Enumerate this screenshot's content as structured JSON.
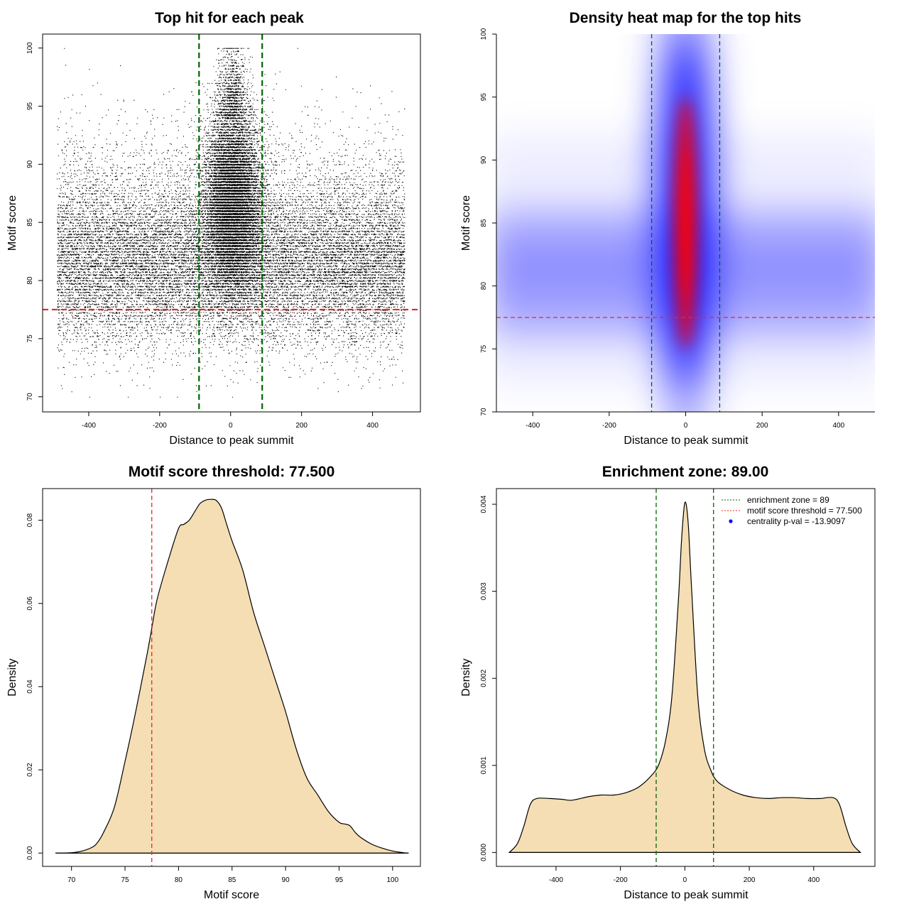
{
  "chart_data": [
    {
      "type": "scatter",
      "title": "Top hit for each peak",
      "xlabel": "Distance to peak summit",
      "ylabel": "Motif score",
      "xlim": [
        -530,
        535
      ],
      "ylim": [
        68.7,
        101.2
      ],
      "xticks": [
        -400,
        -200,
        0,
        200,
        400
      ],
      "yticks": [
        70,
        75,
        80,
        85,
        90,
        95,
        100
      ],
      "lines": [
        {
          "orientation": "vertical",
          "value": -89,
          "color": "#006400",
          "style": "dashed",
          "name": "enrichment zone lower"
        },
        {
          "orientation": "vertical",
          "value": 89,
          "color": "#006400",
          "style": "dashed",
          "name": "enrichment zone upper"
        },
        {
          "orientation": "horizontal",
          "value": 77.5,
          "color": "#e0282d",
          "style": "dashed",
          "name": "motif score threshold"
        }
      ],
      "points_description": "dense cloud of ~40000 top hits; background uniform in x over [-490, 490] with scores centred near 81; central enrichment around x=0 with scores centred near 86 extending to 100",
      "point_color": "#000000"
    },
    {
      "type": "heatmap",
      "title": "Density heat map for the top hits",
      "xlabel": "Distance to peak summit",
      "ylabel": "Motif score",
      "xlim": [
        -495,
        495
      ],
      "ylim": [
        70,
        100
      ],
      "xticks": [
        -400,
        -200,
        0,
        200,
        400
      ],
      "yticks": [
        70,
        75,
        80,
        85,
        90,
        95,
        100
      ],
      "colormap": [
        "#ffffff",
        "#0000ff",
        "#ff0000"
      ],
      "peak_density_at": {
        "x": 0,
        "y": 85
      },
      "lines": [
        {
          "orientation": "vertical",
          "value": -89,
          "color": "#006400",
          "style": "dashed",
          "name": "enrichment zone lower"
        },
        {
          "orientation": "vertical",
          "value": 89,
          "color": "#006400",
          "style": "dashed",
          "name": "enrichment zone upper"
        },
        {
          "orientation": "horizontal",
          "value": 77.5,
          "color": "#e0282d",
          "style": "dashed",
          "name": "motif score threshold"
        }
      ]
    },
    {
      "type": "area",
      "title": "Motif score threshold: 77.500",
      "xlabel": "Motif score",
      "ylabel": "Density",
      "xlim": [
        67.3,
        102.6
      ],
      "ylim": [
        -0.0032,
        0.0876
      ],
      "xticks": [
        70,
        75,
        80,
        85,
        90,
        95,
        100
      ],
      "yticks": [
        0.0,
        0.02,
        0.04,
        0.06,
        0.08
      ],
      "ytick_labels": [
        "0.00",
        "0.02",
        "0.04",
        "0.06",
        "0.08"
      ],
      "fill_color": "#f5deb3",
      "x": [
        68.5,
        70,
        71,
        72,
        72.5,
        73,
        74,
        75,
        76,
        77,
        77.5,
        78,
        79,
        80,
        80.5,
        81,
        81.5,
        82,
        82.5,
        83,
        83.5,
        84,
        84.5,
        85,
        86,
        87,
        88,
        89,
        90,
        91,
        92,
        93,
        94,
        95,
        95.5,
        96,
        96.5,
        97,
        98,
        99,
        100,
        101,
        101.5
      ],
      "values": [
        0,
        0.0001,
        0.0005,
        0.0015,
        0.0028,
        0.005,
        0.011,
        0.022,
        0.034,
        0.047,
        0.054,
        0.061,
        0.07,
        0.078,
        0.079,
        0.08,
        0.082,
        0.084,
        0.0848,
        0.085,
        0.0848,
        0.083,
        0.079,
        0.075,
        0.068,
        0.058,
        0.05,
        0.042,
        0.034,
        0.025,
        0.018,
        0.014,
        0.01,
        0.0074,
        0.007,
        0.0066,
        0.005,
        0.0038,
        0.0022,
        0.0012,
        0.0005,
        0.0001,
        0
      ],
      "lines": [
        {
          "orientation": "vertical",
          "value": 77.5,
          "color": "#e0282d",
          "style": "dashed",
          "name": "motif score threshold"
        }
      ]
    },
    {
      "type": "area",
      "title": "Enrichment zone: 89.00",
      "xlabel": "Distance to peak summit",
      "ylabel": "Density",
      "xlim": [
        -585,
        590
      ],
      "ylim": [
        -0.00016,
        0.00418
      ],
      "xticks": [
        -400,
        -200,
        0,
        200,
        400
      ],
      "yticks": [
        0,
        0.001,
        0.002,
        0.003,
        0.004
      ],
      "ytick_labels": [
        "0.000",
        "0.001",
        "0.002",
        "0.003",
        "0.004"
      ],
      "fill_color": "#f5deb3",
      "x": [
        -545,
        -520,
        -500,
        -480,
        -460,
        -420,
        -380,
        -350,
        -300,
        -260,
        -220,
        -180,
        -140,
        -100,
        -80,
        -60,
        -40,
        -20,
        -10,
        0,
        10,
        20,
        40,
        60,
        80,
        100,
        140,
        180,
        220,
        260,
        300,
        340,
        380,
        420,
        460,
        480,
        500,
        520,
        545
      ],
      "values": [
        0,
        0.0001,
        0.0003,
        0.00055,
        0.00062,
        0.00062,
        0.00061,
        0.0006,
        0.00064,
        0.00066,
        0.00066,
        0.00069,
        0.00076,
        0.0009,
        0.00102,
        0.00128,
        0.0018,
        0.0029,
        0.0036,
        0.00402,
        0.0038,
        0.0031,
        0.0018,
        0.0012,
        0.00095,
        0.00082,
        0.00072,
        0.00066,
        0.00063,
        0.00062,
        0.00063,
        0.00063,
        0.00062,
        0.00062,
        0.00063,
        0.00055,
        0.0003,
        0.0001,
        0
      ],
      "lines": [
        {
          "orientation": "vertical",
          "value": -89,
          "color": "#006400",
          "style": "dashed",
          "name": "enrichment zone lower"
        },
        {
          "orientation": "vertical",
          "value": 89,
          "color": "#006400",
          "style": "dashed",
          "name": "enrichment zone upper"
        }
      ],
      "legend": {
        "placement": "top-right",
        "entries": [
          {
            "label": "enrichment zone = 89",
            "color": "#006400",
            "marker": "dotted-line"
          },
          {
            "label": "motif score threshold = 77.500",
            "color": "#e0282d",
            "marker": "dotted-line"
          },
          {
            "label": "centrality p-val = -13.9097",
            "color": "#0000ff",
            "marker": "point"
          }
        ]
      }
    }
  ]
}
